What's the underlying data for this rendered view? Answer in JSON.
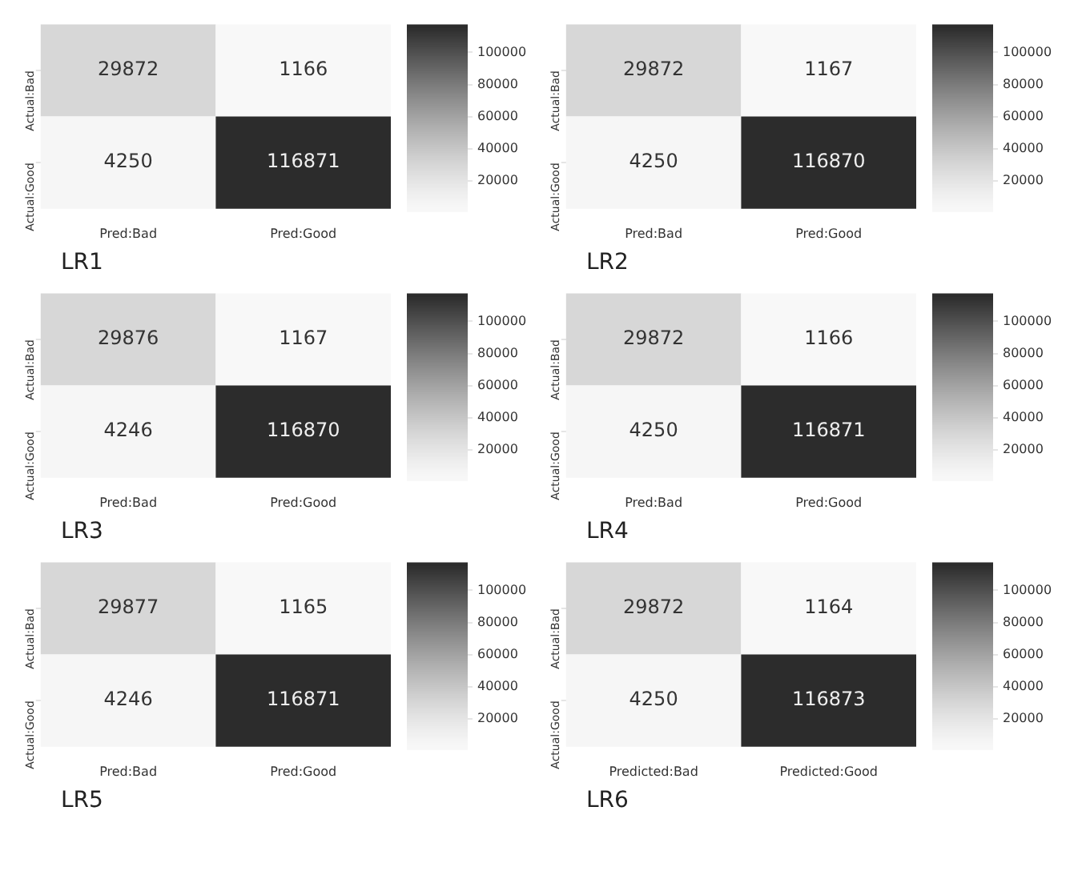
{
  "chart_data": [
    {
      "type": "heatmap",
      "title": "LR1",
      "categories": [
        "Pred:Bad",
        "Pred:Good"
      ],
      "y_categories": [
        "Actual:Bad",
        "Actual:Good"
      ],
      "cells": [
        [
          29872,
          1166
        ],
        [
          4250,
          116871
        ]
      ],
      "clim": [
        1166,
        116871
      ],
      "cticks": [
        20000,
        40000,
        60000,
        80000,
        100000
      ],
      "data_labels": true
    },
    {
      "type": "heatmap",
      "title": "LR2",
      "categories": [
        "Pred:Bad",
        "Pred:Good"
      ],
      "y_categories": [
        "Actual:Bad",
        "Actual:Good"
      ],
      "cells": [
        [
          29872,
          1167
        ],
        [
          4250,
          116870
        ]
      ],
      "clim": [
        1167,
        116870
      ],
      "cticks": [
        20000,
        40000,
        60000,
        80000,
        100000
      ],
      "data_labels": true
    },
    {
      "type": "heatmap",
      "title": "LR3",
      "categories": [
        "Pred:Bad",
        "Pred:Good"
      ],
      "y_categories": [
        "Actual:Bad",
        "Actual:Good"
      ],
      "cells": [
        [
          29876,
          1167
        ],
        [
          4246,
          116870
        ]
      ],
      "clim": [
        1167,
        116870
      ],
      "cticks": [
        20000,
        40000,
        60000,
        80000,
        100000
      ],
      "data_labels": true
    },
    {
      "type": "heatmap",
      "title": "LR4",
      "categories": [
        "Pred:Bad",
        "Pred:Good"
      ],
      "y_categories": [
        "Actual:Bad",
        "Actual:Good"
      ],
      "cells": [
        [
          29872,
          1166
        ],
        [
          4250,
          116871
        ]
      ],
      "clim": [
        1166,
        116871
      ],
      "cticks": [
        20000,
        40000,
        60000,
        80000,
        100000
      ],
      "data_labels": true
    },
    {
      "type": "heatmap",
      "title": "LR5",
      "categories": [
        "Pred:Bad",
        "Pred:Good"
      ],
      "y_categories": [
        "Actual:Bad",
        "Actual:Good"
      ],
      "cells": [
        [
          29877,
          1165
        ],
        [
          4246,
          116871
        ]
      ],
      "clim": [
        1165,
        116871
      ],
      "cticks": [
        20000,
        40000,
        60000,
        80000,
        100000
      ],
      "data_labels": true
    },
    {
      "type": "heatmap",
      "title": "LR6",
      "categories": [
        "Predicted:Bad",
        "Predicted:Good"
      ],
      "y_categories": [
        "Actual:Bad",
        "Actual:Good"
      ],
      "cells": [
        [
          29872,
          1164
        ],
        [
          4250,
          116873
        ]
      ],
      "clim": [
        1164,
        116873
      ],
      "cticks": [
        20000,
        40000,
        60000,
        80000,
        100000
      ],
      "data_labels": true
    }
  ]
}
